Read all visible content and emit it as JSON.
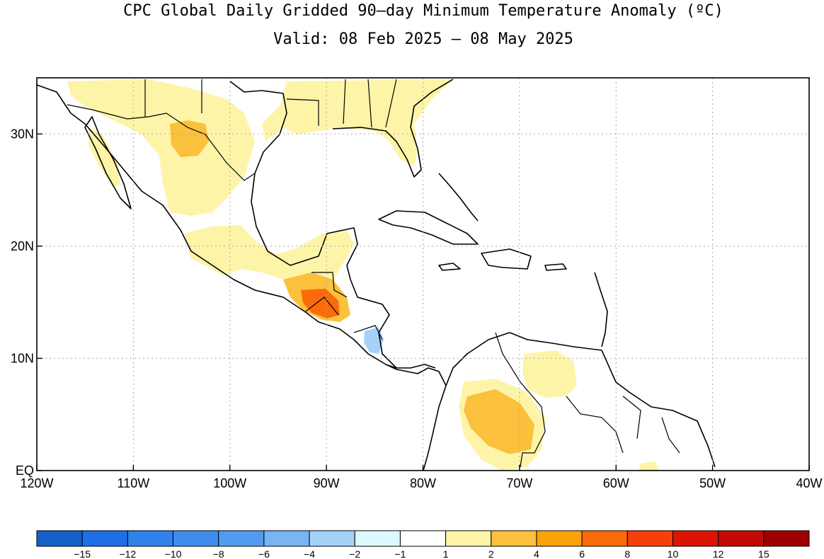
{
  "title": "CPC Global Daily Gridded 90—day Minimum Temperature Anomaly (ºC)",
  "subtitle": "Valid: 08 Feb 2025 — 08 May 2025",
  "map": {
    "lon_range": [
      -120,
      -40
    ],
    "lat_range": [
      0,
      35
    ],
    "x_ticks": [
      {
        "value": -120,
        "label": "120W"
      },
      {
        "value": -110,
        "label": "110W"
      },
      {
        "value": -100,
        "label": "100W"
      },
      {
        "value": -90,
        "label": "90W"
      },
      {
        "value": -80,
        "label": "80W"
      },
      {
        "value": -70,
        "label": "70W"
      },
      {
        "value": -60,
        "label": "60W"
      },
      {
        "value": -50,
        "label": "50W"
      },
      {
        "value": -40,
        "label": "40W"
      }
    ],
    "y_ticks": [
      {
        "value": 0,
        "label": "EQ"
      },
      {
        "value": 10,
        "label": "10N"
      },
      {
        "value": 20,
        "label": "20N"
      },
      {
        "value": 30,
        "label": "30N"
      }
    ],
    "grid": true
  },
  "colorbar": {
    "colors": [
      "#1560c8",
      "#1e6ee8",
      "#2f82ea",
      "#3e8ef0",
      "#519cf0",
      "#79b4f5",
      "#a6d2fa",
      "#ddf8fe",
      "#ffffff",
      "#fdf4a8",
      "#fbc03c",
      "#fba10a",
      "#fb6b0a",
      "#f63f0a",
      "#dc1404",
      "#c30a04",
      "#9e0000"
    ],
    "labels": [
      "−15",
      "−12",
      "−10",
      "−8",
      "−6",
      "−4",
      "−2",
      "−1",
      "1",
      "2",
      "4",
      "6",
      "8",
      "10",
      "12",
      "15"
    ]
  }
}
